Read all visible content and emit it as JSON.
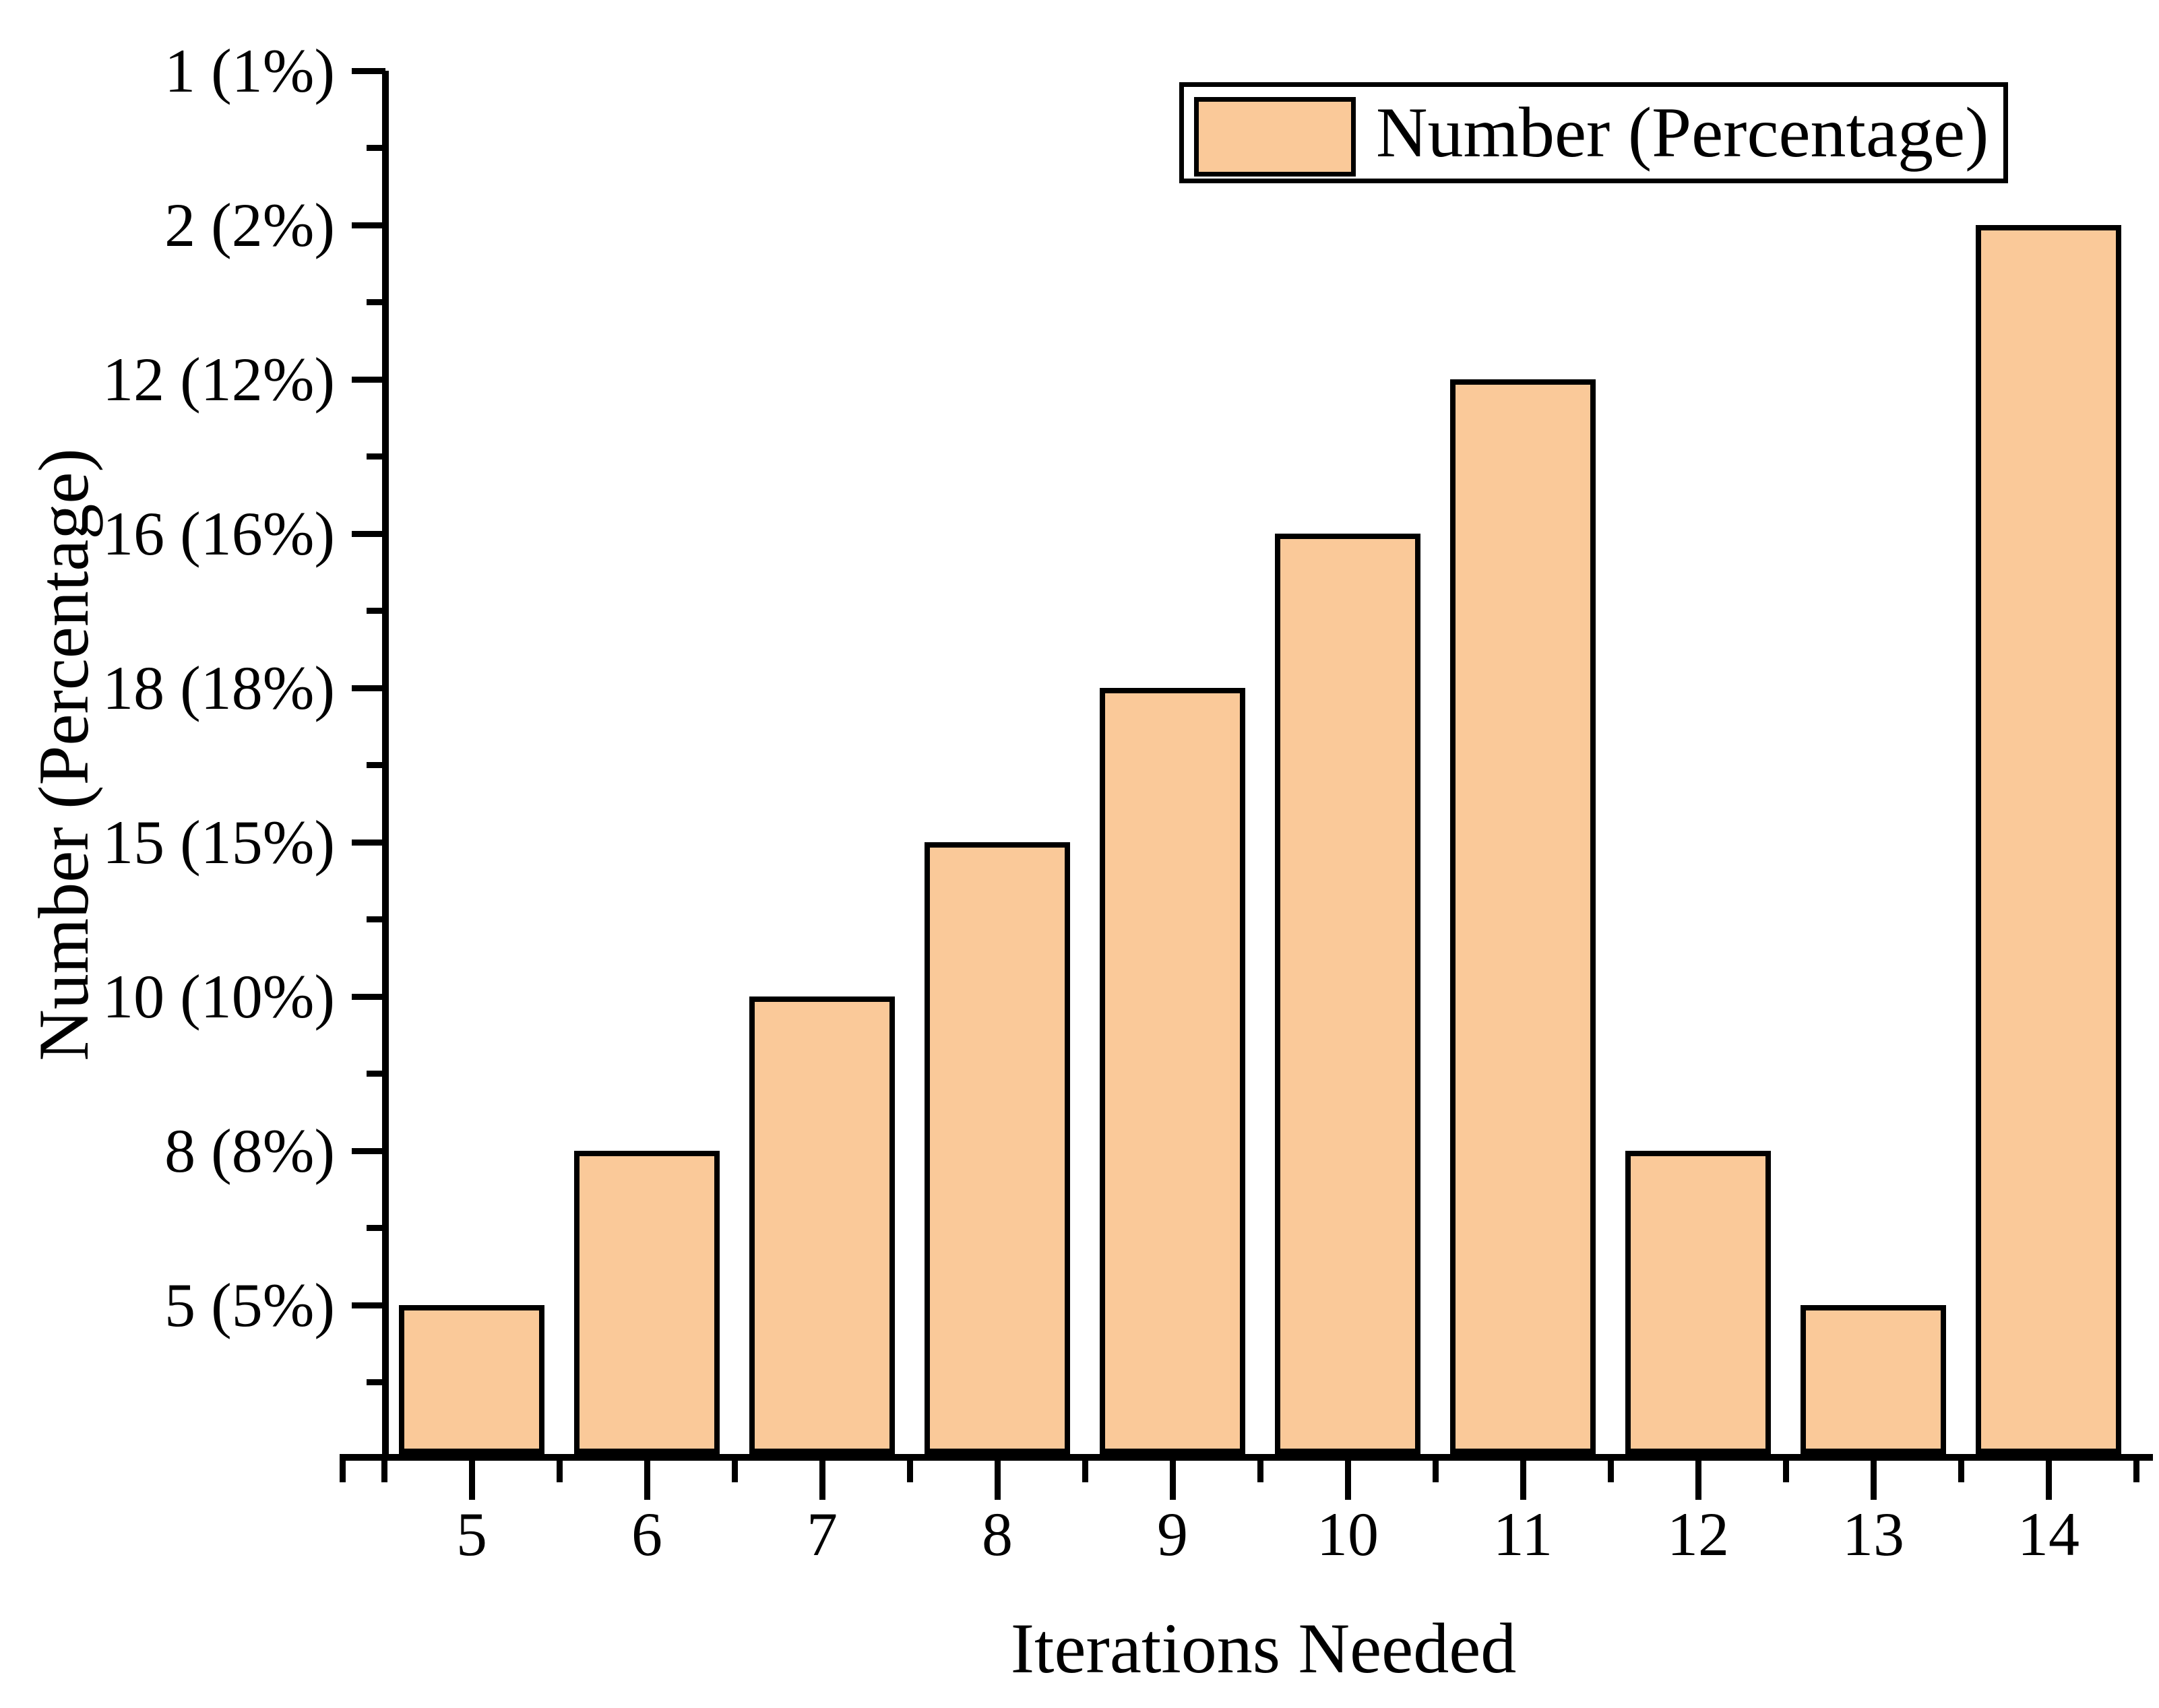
{
  "figure": {
    "background_color": "#FFFFFF",
    "axis_color": "#000000",
    "legend": {
      "label": "Number (Percentage)",
      "swatch_color": "#FAC999",
      "border_color": "#000000",
      "position": "top-right"
    },
    "x_axis": {
      "title": "Iterations Needed",
      "tick_labels": [
        "5",
        "6",
        "7",
        "8",
        "9",
        "10",
        "11",
        "12",
        "13",
        "14"
      ]
    },
    "y_axis": {
      "title": "Number (Percentage)",
      "tick_labels_top_to_bottom": [
        "1 (1%)",
        "2 (2%)",
        "12 (12%)",
        "16 (16%)",
        "18 (18%)",
        "15 (15%)",
        "10 (10%)",
        "8 (8%)",
        "5 (5%)"
      ]
    }
  },
  "chart_data": {
    "type": "bar",
    "title": "",
    "xlabel": "Iterations Needed",
    "ylabel": "Number (Percentage)",
    "categories": [
      "5",
      "6",
      "7",
      "8",
      "9",
      "10",
      "11",
      "12",
      "13",
      "14"
    ],
    "series": [
      {
        "name": "Number (Percentage)",
        "values": [
          5,
          8,
          10,
          15,
          18,
          16,
          12,
          8,
          5,
          2
        ],
        "percentages": [
          "5%",
          "8%",
          "10%",
          "15%",
          "18%",
          "16%",
          "12%",
          "8%",
          "5%",
          "2%"
        ],
        "value_labels": [
          "5 (5%)",
          "8 (8%)",
          "10 (10%)",
          "15 (15%)",
          "18 (18%)",
          "16 (16%)",
          "12 (12%)",
          "8 (8%)",
          "5 (5%)",
          "2 (2%)"
        ]
      }
    ],
    "x_tick_labels": [
      "5",
      "6",
      "7",
      "8",
      "9",
      "10",
      "11",
      "12",
      "13",
      "14"
    ],
    "y_tick_labels_top_to_bottom": [
      "1 (1%)",
      "2 (2%)",
      "12 (12%)",
      "16 (16%)",
      "18 (18%)",
      "15 (15%)",
      "10 (10%)",
      "8 (8%)",
      "5 (5%)"
    ],
    "bar_fill_color": "#FAC999",
    "bar_border_color": "#000000",
    "grid": false,
    "legend_position": "top-right",
    "note_alignment": "each bar top aligns with the evenly spaced y tick whose label matches the bar value"
  }
}
